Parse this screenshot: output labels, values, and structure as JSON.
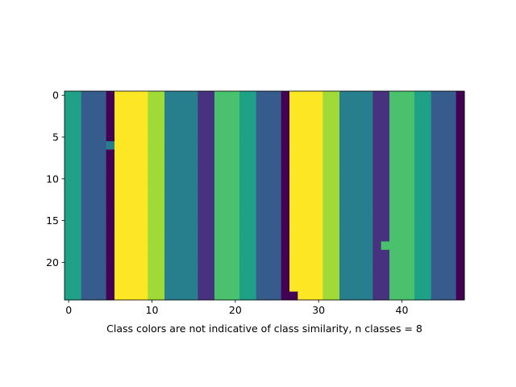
{
  "chart_data": {
    "type": "heatmap",
    "title": "",
    "xlabel": "Class colors are not indicative of class similarity, n classes = 8",
    "ylabel": "",
    "n_rows": 25,
    "n_cols": 48,
    "xlim": [
      -0.5,
      47.5
    ],
    "ylim": [
      24.5,
      -0.5
    ],
    "xticks": [
      0,
      10,
      20,
      30,
      40
    ],
    "yticks": [
      0,
      5,
      10,
      15,
      20
    ],
    "xtick_labels": [
      "0",
      "10",
      "20",
      "30",
      "40"
    ],
    "ytick_labels": [
      "0",
      "5",
      "10",
      "15",
      "20"
    ],
    "grid": false,
    "legend": "none",
    "colormap": [
      "#440154",
      "#46327e",
      "#365c8d",
      "#277f8e",
      "#1fa187",
      "#4ac16d",
      "#a0da39",
      "#fde725"
    ],
    "column_classes": [
      4,
      4,
      2,
      2,
      2,
      0,
      7,
      7,
      7,
      7,
      6,
      6,
      3,
      3,
      3,
      3,
      1,
      1,
      5,
      5,
      5,
      4,
      4,
      2,
      2,
      2,
      0,
      7,
      7,
      7,
      7,
      6,
      6,
      3,
      3,
      3,
      3,
      1,
      1,
      5,
      5,
      5,
      4,
      4,
      2,
      2,
      2,
      0
    ],
    "cell_overrides": [
      {
        "row": 6,
        "col": 5,
        "class": 3
      },
      {
        "row": 18,
        "col": 38,
        "class": 5
      },
      {
        "row": 24,
        "col": 27,
        "class": 0
      }
    ]
  }
}
